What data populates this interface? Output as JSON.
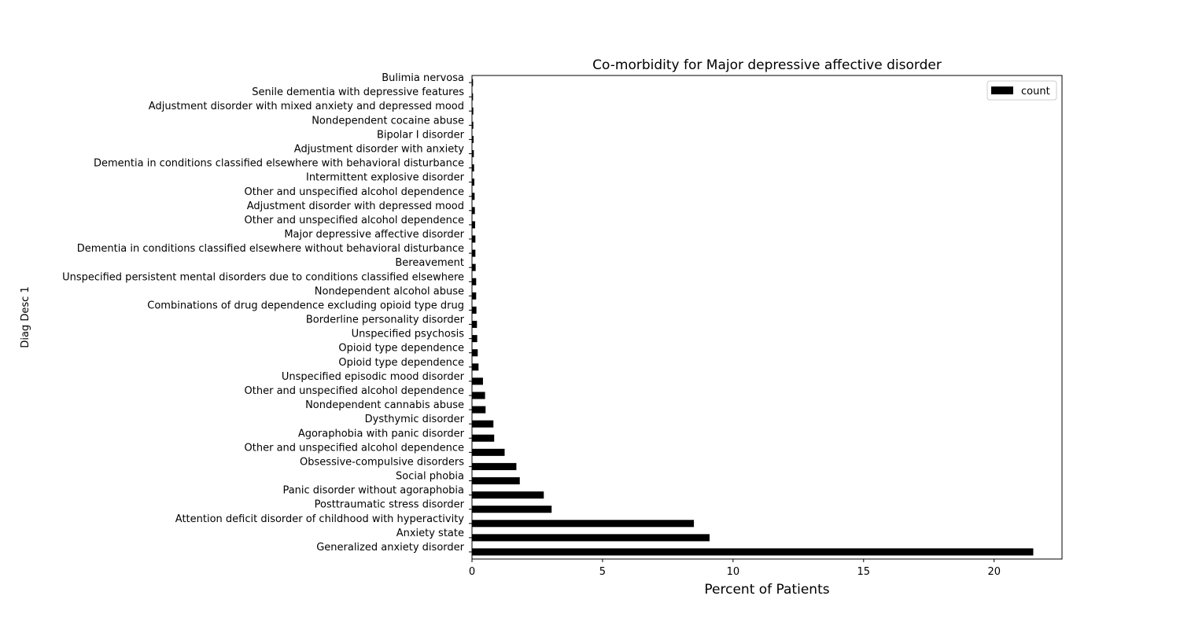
{
  "chart_data": {
    "type": "bar",
    "orientation": "horizontal",
    "title": "Co-morbidity for Major depressive affective disorder",
    "xlabel": "Percent of Patients",
    "ylabel": "Diag Desc 1",
    "xlim": [
      0,
      22.6
    ],
    "xticks": [
      0,
      5,
      10,
      15,
      20
    ],
    "grid": false,
    "legend_position": "top-right",
    "bar_color": "#000000",
    "categories": [
      "Generalized anxiety disorder",
      "Anxiety state",
      "Attention deficit disorder of childhood with hyperactivity",
      "Posttraumatic stress disorder",
      "Panic disorder without agoraphobia",
      "Social phobia",
      "Obsessive-compulsive disorders",
      "Other and unspecified alcohol dependence",
      "Agoraphobia with panic disorder",
      "Dysthymic disorder",
      "Nondependent cannabis abuse",
      "Other and unspecified alcohol dependence",
      "Unspecified episodic mood disorder",
      "Opioid type dependence",
      "Opioid type dependence",
      "Unspecified psychosis",
      "Borderline personality disorder",
      "Combinations of drug dependence excluding opioid type drug",
      "Nondependent alcohol abuse",
      "Unspecified persistent mental disorders due to conditions classified elsewhere",
      "Bereavement",
      "Dementia in conditions classified elsewhere without behavioral disturbance",
      "Major depressive affective disorder",
      "Other and unspecified alcohol dependence",
      "Adjustment disorder with depressed mood",
      "Other and unspecified alcohol dependence",
      "Intermittent explosive disorder",
      "Dementia in conditions classified elsewhere with behavioral disturbance",
      "Adjustment disorder with anxiety",
      "Bipolar I disorder",
      "Nondependent cocaine abuse",
      "Adjustment disorder with mixed anxiety and depressed mood",
      "Senile dementia with depressive features",
      "Bulimia nervosa"
    ],
    "series": [
      {
        "name": "count",
        "values": [
          21.5,
          9.1,
          8.5,
          3.05,
          2.75,
          1.83,
          1.7,
          1.25,
          0.85,
          0.82,
          0.52,
          0.5,
          0.42,
          0.25,
          0.22,
          0.2,
          0.19,
          0.17,
          0.16,
          0.16,
          0.14,
          0.13,
          0.13,
          0.12,
          0.11,
          0.1,
          0.09,
          0.08,
          0.07,
          0.06,
          0.05,
          0.05,
          0.04,
          0.04
        ]
      }
    ]
  }
}
